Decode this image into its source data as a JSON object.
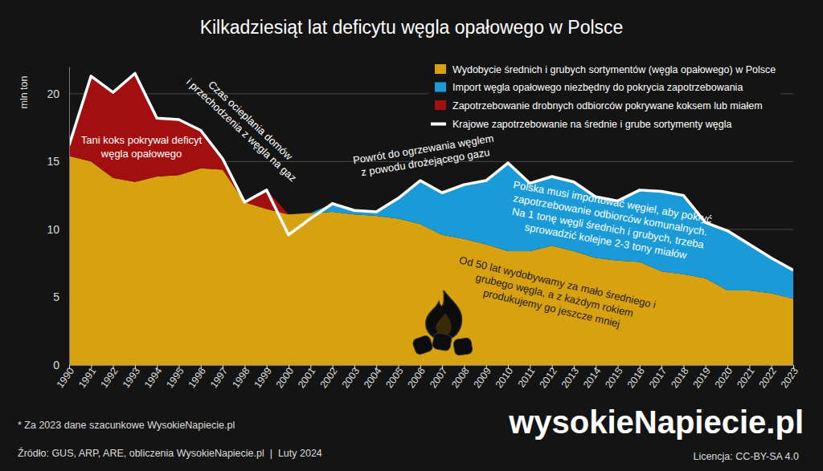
{
  "chart_data": {
    "type": "area",
    "title": "Kilkadziesiąt lat deficytu węgla opałowego w Polsce",
    "y_label": "mln ton",
    "x": [
      1990,
      1991,
      1992,
      1993,
      1994,
      1995,
      1996,
      1997,
      1998,
      1999,
      2000,
      2001,
      2002,
      2003,
      2004,
      2005,
      2006,
      2007,
      2008,
      2009,
      2010,
      2011,
      2012,
      2013,
      2014,
      2015,
      2016,
      2017,
      2018,
      2019,
      2020,
      2021,
      2022,
      2023
    ],
    "xlim": [
      1990,
      2023
    ],
    "xticks": [
      1990,
      1991,
      1992,
      1993,
      1994,
      1995,
      1996,
      1997,
      1998,
      1999,
      2000,
      2001,
      2002,
      2003,
      2004,
      2005,
      2006,
      2007,
      2008,
      2009,
      2010,
      2011,
      2012,
      2013,
      2014,
      2015,
      2016,
      2017,
      2018,
      2019,
      2020,
      2021,
      2022,
      2023
    ],
    "ylim": [
      0,
      22
    ],
    "yticks": [
      0,
      5,
      10,
      15,
      20
    ],
    "grid": true,
    "stacked": true,
    "legend": "upper right",
    "series": [
      {
        "name": "Wydobycie średnich i grubych sortymentów (węgla opałowego) w Polsce",
        "color": "#d8a10f",
        "type": "area",
        "values": [
          15.4,
          15.0,
          13.8,
          13.5,
          13.9,
          14.0,
          14.5,
          14.4,
          12.0,
          11.5,
          11.1,
          11.2,
          11.3,
          11.1,
          11.0,
          10.8,
          10.4,
          9.6,
          9.3,
          8.9,
          8.4,
          8.4,
          8.8,
          8.4,
          7.9,
          7.7,
          7.6,
          6.9,
          6.7,
          6.4,
          5.5,
          5.5,
          5.3,
          4.9
        ]
      },
      {
        "name": "Import węgla opałowego niezbędny do pokrycia zapotrzebowania",
        "color": "#1a9bd7",
        "type": "area",
        "values": [
          0,
          0,
          0,
          0,
          0,
          0,
          0,
          0,
          0,
          0,
          0,
          0,
          0.6,
          0.3,
          0.3,
          1.5,
          3.2,
          3.1,
          4.0,
          4.7,
          6.5,
          5.0,
          5.1,
          5.1,
          4.5,
          4.4,
          5.3,
          5.9,
          5.8,
          4.1,
          4.4,
          3.4,
          2.6,
          2.1
        ]
      },
      {
        "name": "Zapotrzebowanie drobnych odbiorców pokrywane koksem lub miałem",
        "color": "#a30e0e",
        "type": "area",
        "values": [
          0.8,
          6.3,
          6.3,
          8.0,
          4.3,
          4.1,
          2.8,
          0.8,
          0,
          1.4,
          0,
          0,
          0,
          0,
          0,
          0,
          0,
          0,
          0,
          0,
          0,
          0,
          0,
          0,
          0,
          0,
          0,
          0,
          0,
          0,
          0,
          0,
          0,
          0
        ]
      },
      {
        "name": "Krajowe zapotrzebowanie na średnie i grube sortymenty węgla",
        "color": "#ffffff",
        "type": "line",
        "values": [
          16.2,
          21.3,
          20.1,
          21.5,
          18.2,
          18.1,
          17.3,
          15.2,
          12.0,
          12.9,
          9.6,
          10.8,
          11.9,
          11.4,
          11.3,
          12.3,
          13.6,
          12.7,
          13.3,
          13.6,
          14.9,
          13.4,
          13.9,
          13.5,
          12.4,
          12.1,
          12.9,
          12.8,
          12.5,
          10.5,
          9.9,
          8.9,
          7.9,
          7.0
        ]
      }
    ],
    "annotations": [
      {
        "lines": [
          "Tani koks pokrywał deficyt",
          "węgla opałowego"
        ]
      },
      {
        "lines": [
          "Czas ocieplania domów",
          "i przechodzenia z węgla na gaz"
        ]
      },
      {
        "lines": [
          "Powrót do ogrzewania węglem",
          "z powodu drożejącego gazu"
        ]
      },
      {
        "lines": [
          "Polska musi importować węgiel, aby pokryć",
          "zapotrzebowanie odbiorców komunalnych.",
          "Na 1 tonę węgli średnich i grubych, trzeba",
          "sprowadzić kolejne 2-3 tony miałów"
        ]
      },
      {
        "lines": [
          "Od 50 lat wydobywamy za mało średniego i",
          "grubego węgla, a z każdym rokiem",
          "produkujemy go jeszcze mniej"
        ]
      }
    ],
    "footnote": "* Za 2023 dane szacunkowe WysokieNapiecie.pl",
    "source": "Źródło: GUS, ARP, ARE, obliczenia WysokieNapiecie.pl  |  Luty 2024",
    "license": "Licencja: CC-BY-SA 4.0",
    "logo": "wysokieNapiecie.pl"
  }
}
